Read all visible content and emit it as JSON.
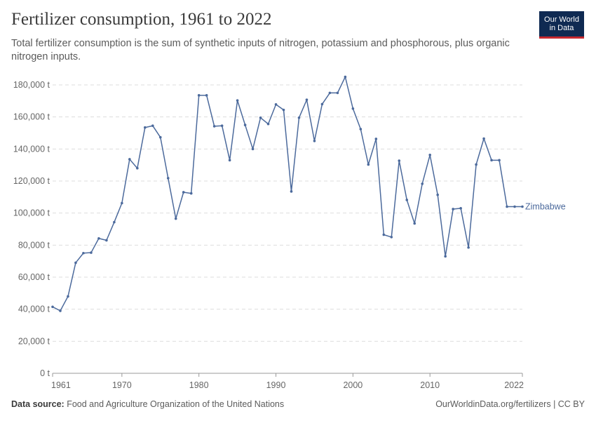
{
  "header": {
    "title": "Fertilizer consumption, 1961 to 2022",
    "subtitle": "Total fertilizer consumption is the sum of synthetic inputs of nitrogen, potassium and phosphorous, plus organic nitrogen inputs."
  },
  "logo": {
    "line1": "Our World",
    "line2": "in Data",
    "bg_color": "#0f2a52",
    "accent_color": "#c5282f"
  },
  "footer": {
    "source_label": "Data source:",
    "source_text": "Food and Agriculture Organization of the United Nations",
    "link_text": "OurWorldinData.org/fertilizers | CC BY"
  },
  "chart_data": {
    "type": "line",
    "title": "Fertilizer consumption, 1961 to 2022",
    "xlabel": "",
    "ylabel": "",
    "xlim": [
      1961,
      2022
    ],
    "ylim": [
      0,
      180000
    ],
    "x_ticks": [
      1961,
      1970,
      1980,
      1990,
      2000,
      2010,
      2022
    ],
    "y_ticks": [
      0,
      20000,
      40000,
      60000,
      80000,
      100000,
      120000,
      140000,
      160000,
      180000
    ],
    "y_tick_labels": [
      "0 t",
      "20,000 t",
      "40,000 t",
      "60,000 t",
      "80,000 t",
      "100,000 t",
      "120,000 t",
      "140,000 t",
      "160,000 t",
      "180,000 t"
    ],
    "grid": "horizontal dashed",
    "series_color": "#4c6a9c",
    "series": [
      {
        "name": "Zimbabwe",
        "x": [
          1961,
          1962,
          1963,
          1964,
          1965,
          1966,
          1967,
          1968,
          1969,
          1970,
          1971,
          1972,
          1973,
          1974,
          1975,
          1976,
          1977,
          1978,
          1979,
          1980,
          1981,
          1982,
          1983,
          1984,
          1985,
          1986,
          1987,
          1988,
          1989,
          1990,
          1991,
          1992,
          1993,
          1994,
          1995,
          1996,
          1997,
          1998,
          1999,
          2000,
          2001,
          2002,
          2003,
          2004,
          2005,
          2006,
          2007,
          2008,
          2009,
          2010,
          2011,
          2012,
          2013,
          2014,
          2015,
          2016,
          2017,
          2018,
          2019,
          2020,
          2021,
          2022
        ],
        "values": [
          41500,
          39000,
          48000,
          69000,
          75000,
          75300,
          84200,
          83000,
          94300,
          106200,
          133600,
          128000,
          153400,
          154500,
          147300,
          121800,
          96500,
          113000,
          112300,
          173500,
          173500,
          154200,
          154500,
          133000,
          170300,
          155000,
          140000,
          159500,
          155600,
          167800,
          164400,
          113500,
          159500,
          170700,
          145000,
          168000,
          175000,
          175000,
          185000,
          165200,
          152400,
          130300,
          146300,
          86500,
          85000,
          132700,
          108200,
          93500,
          118300,
          136300,
          111400,
          73000,
          102500,
          103000,
          78500,
          130300,
          146500,
          133000,
          133000,
          104000,
          104000,
          104000
        ]
      }
    ]
  }
}
